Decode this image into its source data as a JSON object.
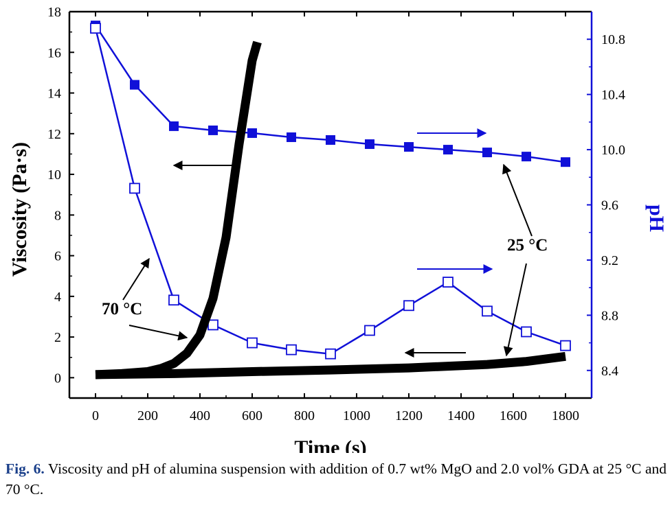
{
  "caption": {
    "label": "Fig. 6.",
    "text": "Viscosity and pH of alumina suspension with addition of 0.7 wt% MgO and 2.0 vol% GDA at 25 °C and 70 °C."
  },
  "colors": {
    "ph_series": "#1010d8",
    "viscosity_series": "#000000",
    "axis": "#000000"
  },
  "chart_data": {
    "type": "line",
    "xlabel": "Time (s)",
    "ylabel": "Viscosity (Pa·s)",
    "y2label": "pH",
    "xlim": [
      -100,
      1900
    ],
    "ylim": [
      -1,
      18
    ],
    "y2lim": [
      8.2,
      11.0
    ],
    "x_ticks": [
      0,
      200,
      400,
      600,
      800,
      1000,
      1200,
      1400,
      1600,
      1800
    ],
    "y_ticks": [
      0,
      2,
      4,
      6,
      8,
      10,
      12,
      14,
      16,
      18
    ],
    "y2_ticks": [
      8.4,
      8.8,
      9.2,
      9.6,
      10.0,
      10.4,
      10.8
    ],
    "y2_tick_labels": [
      "8.4",
      "8.8",
      "9.2",
      "9.6",
      "10.0",
      "10.4",
      "10.8"
    ],
    "grid": false,
    "series": [
      {
        "axis": "right",
        "marker": "filled-square",
        "color": "#1010d8",
        "x": [
          0,
          150,
          300,
          450,
          600,
          750,
          900,
          1050,
          1200,
          1350,
          1500,
          1650,
          1800
        ],
        "y": [
          10.9,
          10.47,
          10.17,
          10.14,
          10.12,
          10.09,
          10.07,
          10.04,
          10.02,
          10.0,
          9.98,
          9.95,
          9.91
        ]
      },
      {
        "axis": "right",
        "marker": "open-square",
        "color": "#1010d8",
        "x": [
          0,
          150,
          300,
          450,
          600,
          750,
          900,
          1050,
          1200,
          1350,
          1500,
          1650,
          1800
        ],
        "y": [
          10.88,
          9.72,
          8.91,
          8.73,
          8.6,
          8.55,
          8.52,
          8.69,
          8.87,
          9.04,
          8.83,
          8.68,
          8.58
        ]
      },
      {
        "axis": "left",
        "marker": "thick-line",
        "color": "#000000",
        "x": [
          0,
          100,
          200,
          250,
          300,
          350,
          400,
          450,
          500,
          550,
          600,
          620
        ],
        "y": [
          0.15,
          0.2,
          0.3,
          0.45,
          0.7,
          1.2,
          2.1,
          3.9,
          6.9,
          11.5,
          15.6,
          16.5
        ]
      },
      {
        "axis": "left",
        "marker": "thick-line",
        "color": "#000000",
        "x": [
          0,
          300,
          600,
          900,
          1200,
          1500,
          1650,
          1800
        ],
        "y": [
          0.15,
          0.2,
          0.3,
          0.38,
          0.48,
          0.65,
          0.8,
          1.05
        ]
      }
    ],
    "annotations": [
      {
        "text": "25 °C"
      },
      {
        "text": "70 °C"
      }
    ]
  }
}
